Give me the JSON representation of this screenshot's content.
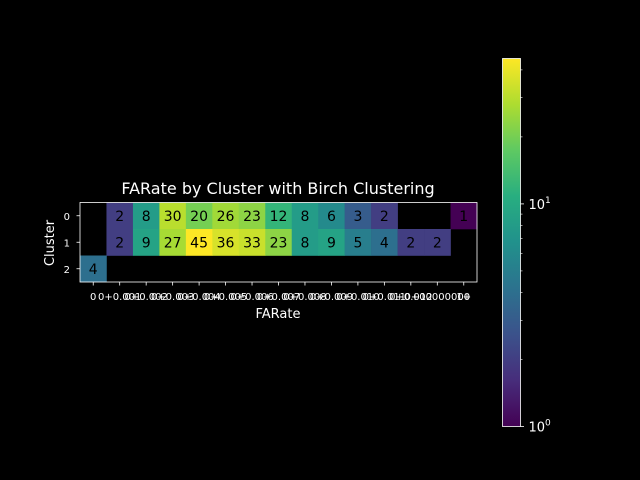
{
  "chart_data": {
    "type": "heatmap",
    "title": "FARate by Cluster with Birch Clustering",
    "xlabel": "FARate",
    "ylabel": "Cluster",
    "x_tick_labels": [
      "0",
      "0+0.001",
      "0+0.002",
      "0+0.003",
      "0+0.004",
      "0+0.005",
      "0+0.006",
      "0+0.007",
      "0+0.008",
      "0+0.009",
      "0+0.010",
      "0+0.011",
      "0+0.012",
      "0+00000000",
      "1+"
    ],
    "y_tick_labels": [
      "0",
      "1",
      "2"
    ],
    "values": [
      [
        null,
        2,
        8,
        30,
        20,
        26,
        23,
        12,
        8,
        6,
        3,
        2,
        null,
        null,
        1
      ],
      [
        null,
        2,
        9,
        27,
        45,
        36,
        33,
        23,
        8,
        9,
        5,
        4,
        2,
        2,
        null
      ],
      [
        4,
        null,
        null,
        null,
        null,
        null,
        null,
        null,
        null,
        null,
        null,
        null,
        null,
        null,
        null
      ]
    ],
    "colorbar": {
      "scale": "log",
      "min": 1,
      "max": 45,
      "tick_labels": [
        "10^0",
        "10^1"
      ],
      "colormap": "viridis"
    },
    "missing_color": "#000000"
  }
}
